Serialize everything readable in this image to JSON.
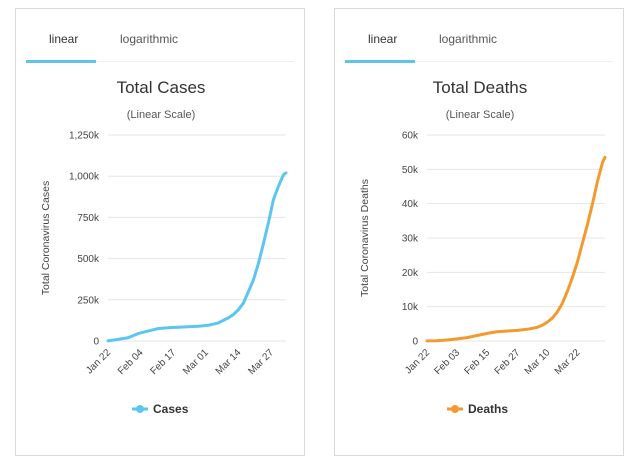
{
  "tabs": {
    "linear": "linear",
    "logarithmic": "logarithmic",
    "active": "linear"
  },
  "colors": {
    "cases": "#5bc6f0",
    "deaths": "#f29a2e",
    "tab_accent": "#5fc4ea",
    "grid": "#e6e6e6"
  },
  "chart_data": [
    {
      "type": "line",
      "title": "Total Cases",
      "subtitle": "(Linear Scale)",
      "ylabel": "Total Coronavirus Cases",
      "xlabel": "",
      "ylim": [
        0,
        1250000
      ],
      "y_ticks": [
        0,
        250000,
        500000,
        750000,
        1000000,
        1250000
      ],
      "y_tick_labels": [
        "0",
        "250k",
        "500k",
        "750k",
        "1,000k",
        "1,250k"
      ],
      "x_tick_labels": [
        "Jan 22",
        "Feb 04",
        "Feb 17",
        "Mar 01",
        "Mar 14",
        "Mar 27"
      ],
      "x_tick_index": [
        0,
        13,
        26,
        39,
        52,
        65
      ],
      "n_points": 72,
      "legend": "Cases",
      "series": [
        {
          "name": "Cases",
          "x": [
            0,
            4,
            8,
            12,
            16,
            20,
            22,
            24,
            25,
            28,
            32,
            36,
            40,
            44,
            48,
            50,
            52,
            54,
            56,
            58,
            60,
            62,
            64,
            65,
            66,
            68,
            70,
            71
          ],
          "values": [
            580,
            10000,
            20000,
            45000,
            60000,
            75000,
            78000,
            80000,
            82000,
            84000,
            86000,
            89000,
            95000,
            110000,
            140000,
            160000,
            190000,
            230000,
            300000,
            370000,
            470000,
            590000,
            720000,
            790000,
            860000,
            940000,
            1010000,
            1020000
          ]
        }
      ]
    },
    {
      "type": "line",
      "title": "Total Deaths",
      "subtitle": "(Linear Scale)",
      "ylabel": "Total Coronavirus Deaths",
      "xlabel": "",
      "ylim": [
        0,
        60000
      ],
      "y_ticks": [
        0,
        10000,
        20000,
        30000,
        40000,
        50000,
        60000
      ],
      "y_tick_labels": [
        "0",
        "10k",
        "20k",
        "30k",
        "40k",
        "50k",
        "60k"
      ],
      "x_tick_labels": [
        "Jan 22",
        "Feb 03",
        "Feb 15",
        "Feb 27",
        "Mar 10",
        "Mar 22"
      ],
      "x_tick_index": [
        0,
        12,
        24,
        36,
        48,
        60
      ],
      "n_points": 72,
      "legend": "Deaths",
      "series": [
        {
          "name": "Deaths",
          "x": [
            0,
            4,
            8,
            12,
            16,
            20,
            24,
            28,
            32,
            36,
            40,
            42,
            44,
            46,
            48,
            50,
            52,
            54,
            56,
            58,
            60,
            62,
            64,
            66,
            68,
            70,
            71
          ],
          "values": [
            17,
            100,
            300,
            600,
            1000,
            1600,
            2200,
            2700,
            2900,
            3100,
            3400,
            3700,
            4000,
            4600,
            5500,
            6700,
            8500,
            11000,
            14500,
            18500,
            23000,
            28500,
            34000,
            40000,
            46500,
            52000,
            53500
          ]
        }
      ]
    }
  ]
}
